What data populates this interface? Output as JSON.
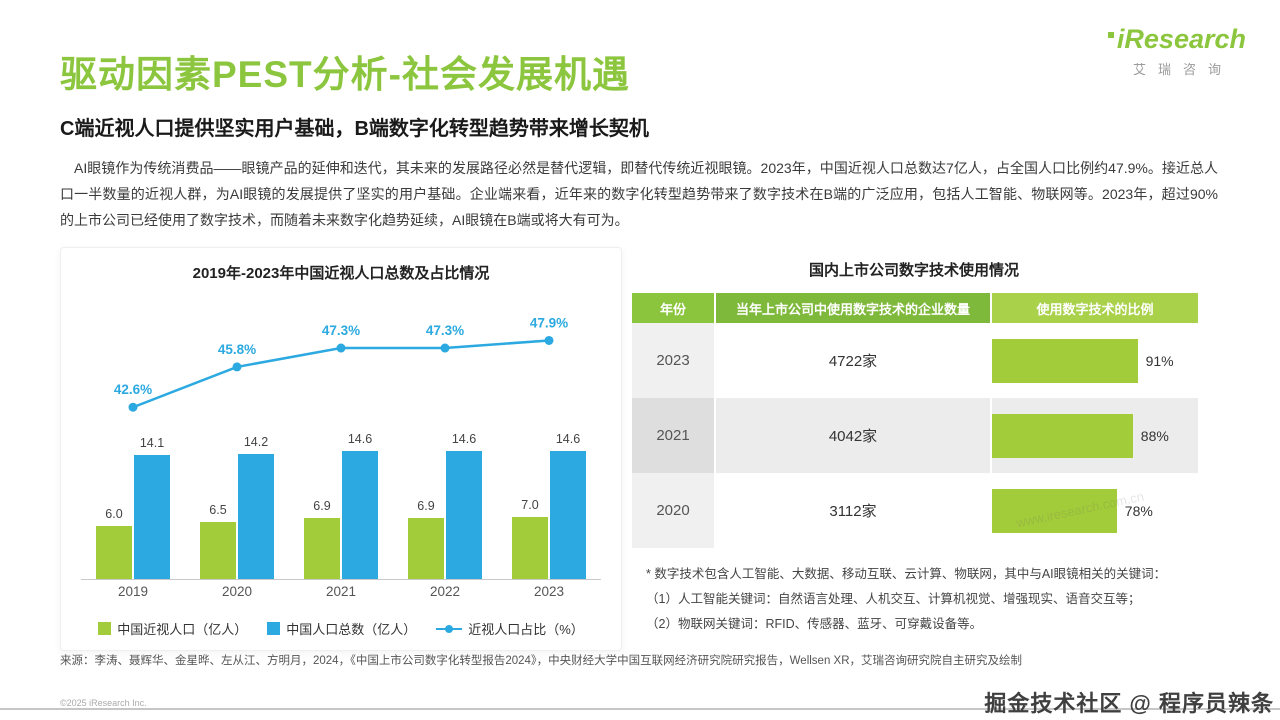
{
  "colors": {
    "green": "#8CC63E",
    "bar_green": "#A3CC3A",
    "blue": "#2BA9E0",
    "header_year": "#8BC53D",
    "header_count": "#7FB93B",
    "header_pct": "#A9D14A"
  },
  "logo": {
    "en": "iResearch",
    "cn": "艾瑞咨询"
  },
  "page": {
    "title": "驱动因素PEST分析-社会发展机遇",
    "subtitle": "C端近视人口提供坚实用户基础，B端数字化转型趋势带来增长契机",
    "body": "AI眼镜作为传统消费品——眼镜产品的延伸和迭代，其未来的发展路径必然是替代逻辑，即替代传统近视眼镜。2023年，中国近视人口总数达7亿人，占全国人口比例约47.9%。接近总人口一半数量的近视人群，为AI眼镜的发展提供了坚实的用户基础。企业端来看，近年来的数字化转型趋势带来了数字技术在B端的广泛应用，包括人工智能、物联网等。2023年，超过90%的上市公司已经使用了数字技术，而随着未来数字化趋势延续，AI眼镜在B端或将大有可为。",
    "source": "来源：李涛、聂辉华、金星晔、左从江、方明月，2024，《中国上市公司数字化转型报告2024》，中央财经大学中国互联网经济研究院研究报告，Wellsen XR，艾瑞咨询研究院自主研究及绘制",
    "copyright": "©2025 iResearch Inc.",
    "watermark": "掘金技术社区 @ 程序员辣条",
    "site_watermark": "www.iresearch.com.cn"
  },
  "notes": {
    "line1": "* 数字技术包含人工智能、大数据、移动互联、云计算、物联网，其中与AI眼镜相关的关键词：",
    "line2": "（1）人工智能关键词：自然语言处理、人机交互、计算机视觉、增强现实、语音交互等；",
    "line3": "（2）物联网关键词：RFID、传感器、蓝牙、可穿戴设备等。"
  },
  "chart_data": [
    {
      "type": "bar",
      "subtype": "grouped-bar-with-line",
      "title": "2019年-2023年中国近视人口总数及占比情况",
      "categories": [
        "2019",
        "2020",
        "2021",
        "2022",
        "2023"
      ],
      "series": [
        {
          "name": "中国近视人口（亿人）",
          "kind": "bar",
          "color": "#A3CC3A",
          "values": [
            6.0,
            6.5,
            6.9,
            6.9,
            7.0
          ]
        },
        {
          "name": "中国人口总数（亿人）",
          "kind": "bar",
          "color": "#2BA9E0",
          "values": [
            14.1,
            14.2,
            14.6,
            14.6,
            14.6
          ]
        },
        {
          "name": "近视人口占比（%）",
          "kind": "line",
          "color": "#2BA9E0",
          "values": [
            42.6,
            45.8,
            47.3,
            47.3,
            47.9
          ]
        }
      ],
      "legend_position": "bottom",
      "grid": false
    },
    {
      "type": "table",
      "title": "国内上市公司数字技术使用情况",
      "columns": [
        "年份",
        "当年上市公司中使用数字技术的企业数量",
        "使用数字技术的比例"
      ],
      "rows": [
        {
          "year": "2023",
          "count": "4722家",
          "percent": 91
        },
        {
          "year": "2021",
          "count": "4042家",
          "percent": 88
        },
        {
          "year": "2020",
          "count": "3112家",
          "percent": 78
        }
      ]
    }
  ]
}
